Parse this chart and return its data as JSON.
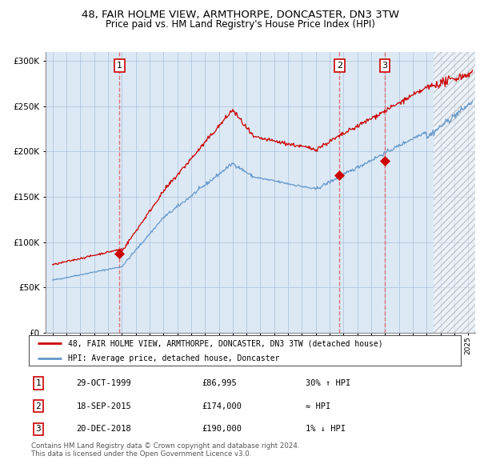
{
  "title": "48, FAIR HOLME VIEW, ARMTHORPE, DONCASTER, DN3 3TW",
  "subtitle": "Price paid vs. HM Land Registry's House Price Index (HPI)",
  "legend_line1": "48, FAIR HOLME VIEW, ARMTHORPE, DONCASTER, DN3 3TW (detached house)",
  "legend_line2": "HPI: Average price, detached house, Doncaster",
  "transactions": [
    {
      "num": 1,
      "date": "29-OCT-1999",
      "price": 86995,
      "year": 1999.83,
      "hpi_rel": "30% ↑ HPI"
    },
    {
      "num": 2,
      "date": "18-SEP-2015",
      "price": 174000,
      "year": 2015.71,
      "hpi_rel": "≈ HPI"
    },
    {
      "num": 3,
      "date": "20-DEC-2018",
      "price": 190000,
      "year": 2018.97,
      "hpi_rel": "1% ↓ HPI"
    }
  ],
  "footnote1": "Contains HM Land Registry data © Crown copyright and database right 2024.",
  "footnote2": "This data is licensed under the Open Government Licence v3.0.",
  "hpi_color": "#6699cc",
  "property_color": "#cc0000",
  "bg_color": "#dce9f5",
  "grid_color": "#b0c4de",
  "dashed_color": "#e06060",
  "ylim": [
    0,
    310000
  ],
  "xlim_start": 1994.5,
  "xlim_end": 2025.5
}
